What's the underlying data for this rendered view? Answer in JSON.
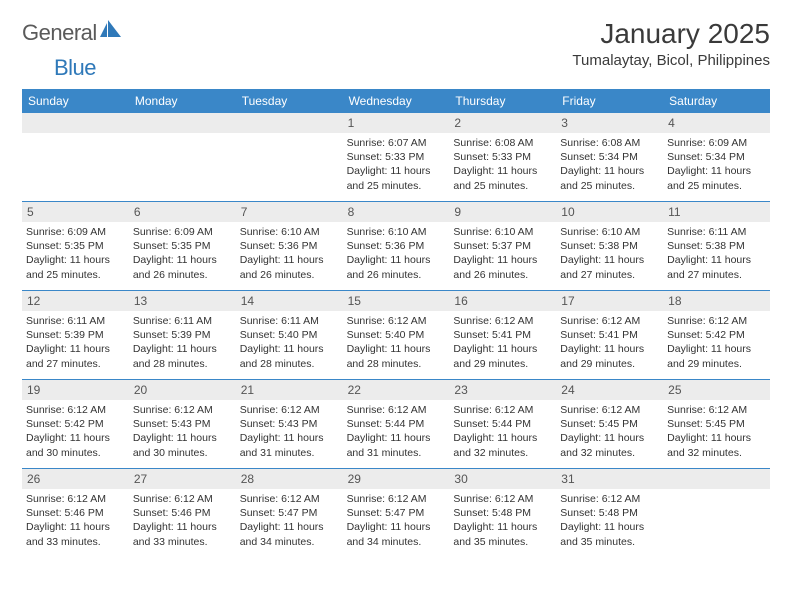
{
  "brand": {
    "text1": "General",
    "text2": "Blue"
  },
  "title": "January 2025",
  "location": "Tumalaytay, Bicol, Philippines",
  "colors": {
    "header_bg": "#3a87c8",
    "header_text": "#ffffff",
    "daynum_bg": "#ececec",
    "rule": "#3a87c8",
    "brand_gray": "#5a5a5a",
    "brand_blue": "#2f79b9"
  },
  "dow": [
    "Sunday",
    "Monday",
    "Tuesday",
    "Wednesday",
    "Thursday",
    "Friday",
    "Saturday"
  ],
  "weeks": [
    [
      {
        "n": "",
        "lines": []
      },
      {
        "n": "",
        "lines": []
      },
      {
        "n": "",
        "lines": []
      },
      {
        "n": "1",
        "lines": [
          "Sunrise: 6:07 AM",
          "Sunset: 5:33 PM",
          "Daylight: 11 hours and 25 minutes."
        ]
      },
      {
        "n": "2",
        "lines": [
          "Sunrise: 6:08 AM",
          "Sunset: 5:33 PM",
          "Daylight: 11 hours and 25 minutes."
        ]
      },
      {
        "n": "3",
        "lines": [
          "Sunrise: 6:08 AM",
          "Sunset: 5:34 PM",
          "Daylight: 11 hours and 25 minutes."
        ]
      },
      {
        "n": "4",
        "lines": [
          "Sunrise: 6:09 AM",
          "Sunset: 5:34 PM",
          "Daylight: 11 hours and 25 minutes."
        ]
      }
    ],
    [
      {
        "n": "5",
        "lines": [
          "Sunrise: 6:09 AM",
          "Sunset: 5:35 PM",
          "Daylight: 11 hours and 25 minutes."
        ]
      },
      {
        "n": "6",
        "lines": [
          "Sunrise: 6:09 AM",
          "Sunset: 5:35 PM",
          "Daylight: 11 hours and 26 minutes."
        ]
      },
      {
        "n": "7",
        "lines": [
          "Sunrise: 6:10 AM",
          "Sunset: 5:36 PM",
          "Daylight: 11 hours and 26 minutes."
        ]
      },
      {
        "n": "8",
        "lines": [
          "Sunrise: 6:10 AM",
          "Sunset: 5:36 PM",
          "Daylight: 11 hours and 26 minutes."
        ]
      },
      {
        "n": "9",
        "lines": [
          "Sunrise: 6:10 AM",
          "Sunset: 5:37 PM",
          "Daylight: 11 hours and 26 minutes."
        ]
      },
      {
        "n": "10",
        "lines": [
          "Sunrise: 6:10 AM",
          "Sunset: 5:38 PM",
          "Daylight: 11 hours and 27 minutes."
        ]
      },
      {
        "n": "11",
        "lines": [
          "Sunrise: 6:11 AM",
          "Sunset: 5:38 PM",
          "Daylight: 11 hours and 27 minutes."
        ]
      }
    ],
    [
      {
        "n": "12",
        "lines": [
          "Sunrise: 6:11 AM",
          "Sunset: 5:39 PM",
          "Daylight: 11 hours and 27 minutes."
        ]
      },
      {
        "n": "13",
        "lines": [
          "Sunrise: 6:11 AM",
          "Sunset: 5:39 PM",
          "Daylight: 11 hours and 28 minutes."
        ]
      },
      {
        "n": "14",
        "lines": [
          "Sunrise: 6:11 AM",
          "Sunset: 5:40 PM",
          "Daylight: 11 hours and 28 minutes."
        ]
      },
      {
        "n": "15",
        "lines": [
          "Sunrise: 6:12 AM",
          "Sunset: 5:40 PM",
          "Daylight: 11 hours and 28 minutes."
        ]
      },
      {
        "n": "16",
        "lines": [
          "Sunrise: 6:12 AM",
          "Sunset: 5:41 PM",
          "Daylight: 11 hours and 29 minutes."
        ]
      },
      {
        "n": "17",
        "lines": [
          "Sunrise: 6:12 AM",
          "Sunset: 5:41 PM",
          "Daylight: 11 hours and 29 minutes."
        ]
      },
      {
        "n": "18",
        "lines": [
          "Sunrise: 6:12 AM",
          "Sunset: 5:42 PM",
          "Daylight: 11 hours and 29 minutes."
        ]
      }
    ],
    [
      {
        "n": "19",
        "lines": [
          "Sunrise: 6:12 AM",
          "Sunset: 5:42 PM",
          "Daylight: 11 hours and 30 minutes."
        ]
      },
      {
        "n": "20",
        "lines": [
          "Sunrise: 6:12 AM",
          "Sunset: 5:43 PM",
          "Daylight: 11 hours and 30 minutes."
        ]
      },
      {
        "n": "21",
        "lines": [
          "Sunrise: 6:12 AM",
          "Sunset: 5:43 PM",
          "Daylight: 11 hours and 31 minutes."
        ]
      },
      {
        "n": "22",
        "lines": [
          "Sunrise: 6:12 AM",
          "Sunset: 5:44 PM",
          "Daylight: 11 hours and 31 minutes."
        ]
      },
      {
        "n": "23",
        "lines": [
          "Sunrise: 6:12 AM",
          "Sunset: 5:44 PM",
          "Daylight: 11 hours and 32 minutes."
        ]
      },
      {
        "n": "24",
        "lines": [
          "Sunrise: 6:12 AM",
          "Sunset: 5:45 PM",
          "Daylight: 11 hours and 32 minutes."
        ]
      },
      {
        "n": "25",
        "lines": [
          "Sunrise: 6:12 AM",
          "Sunset: 5:45 PM",
          "Daylight: 11 hours and 32 minutes."
        ]
      }
    ],
    [
      {
        "n": "26",
        "lines": [
          "Sunrise: 6:12 AM",
          "Sunset: 5:46 PM",
          "Daylight: 11 hours and 33 minutes."
        ]
      },
      {
        "n": "27",
        "lines": [
          "Sunrise: 6:12 AM",
          "Sunset: 5:46 PM",
          "Daylight: 11 hours and 33 minutes."
        ]
      },
      {
        "n": "28",
        "lines": [
          "Sunrise: 6:12 AM",
          "Sunset: 5:47 PM",
          "Daylight: 11 hours and 34 minutes."
        ]
      },
      {
        "n": "29",
        "lines": [
          "Sunrise: 6:12 AM",
          "Sunset: 5:47 PM",
          "Daylight: 11 hours and 34 minutes."
        ]
      },
      {
        "n": "30",
        "lines": [
          "Sunrise: 6:12 AM",
          "Sunset: 5:48 PM",
          "Daylight: 11 hours and 35 minutes."
        ]
      },
      {
        "n": "31",
        "lines": [
          "Sunrise: 6:12 AM",
          "Sunset: 5:48 PM",
          "Daylight: 11 hours and 35 minutes."
        ]
      },
      {
        "n": "",
        "lines": []
      }
    ]
  ]
}
